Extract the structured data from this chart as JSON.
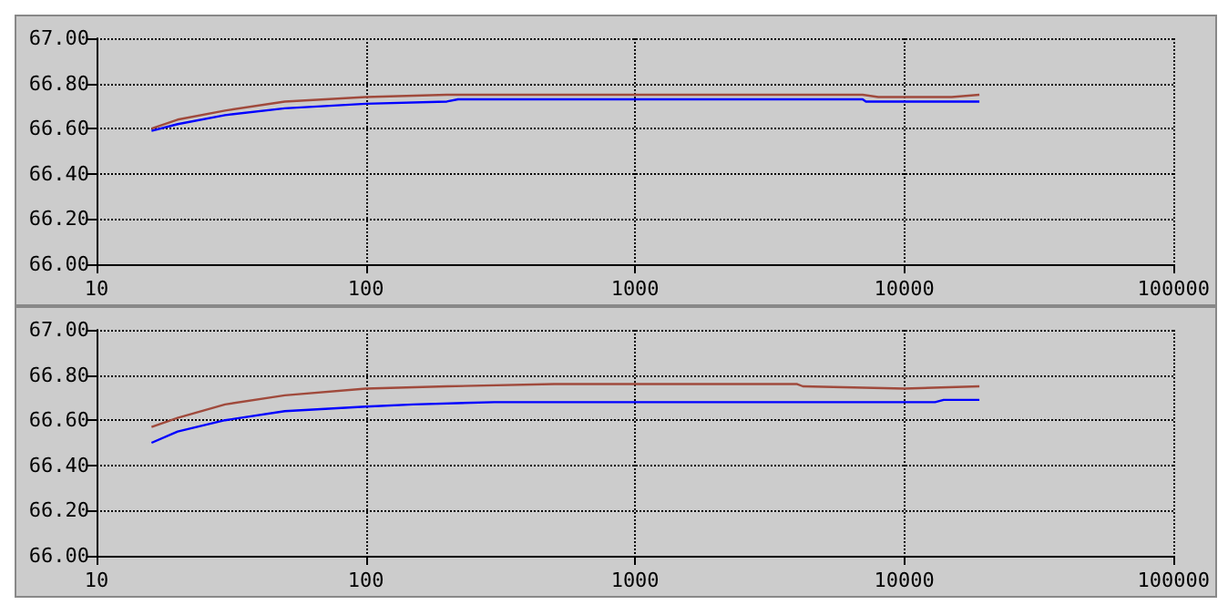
{
  "chart_data": [
    {
      "type": "line",
      "log": "x",
      "grid": true,
      "marker": "none",
      "xlim": [
        10,
        100000
      ],
      "xticks": [
        10,
        100,
        1000,
        10000,
        100000
      ],
      "ylim": [
        66.0,
        67.0
      ],
      "yticks": [
        {
          "value": 66.0,
          "label": "66.00"
        },
        {
          "value": 66.2,
          "label": "66.20"
        },
        {
          "value": 66.4,
          "label": "66.40"
        },
        {
          "value": 66.6,
          "label": "66.60"
        },
        {
          "value": 66.8,
          "label": "66.80"
        },
        {
          "value": 67.0,
          "label": "67.00"
        }
      ],
      "series": [
        {
          "color": "#a04a3c",
          "x": [
            16,
            20,
            30,
            50,
            100,
            200,
            1000,
            7000,
            8000,
            15000,
            19000
          ],
          "values": [
            66.6,
            66.64,
            66.68,
            66.72,
            66.74,
            66.75,
            66.75,
            66.75,
            66.74,
            66.74,
            66.75
          ]
        },
        {
          "color": "#0000ff",
          "x": [
            16,
            20,
            30,
            50,
            100,
            200,
            220,
            1000,
            7000,
            7200,
            19000
          ],
          "values": [
            66.59,
            66.62,
            66.66,
            66.69,
            66.71,
            66.72,
            66.73,
            66.73,
            66.73,
            66.72,
            66.72
          ]
        }
      ]
    },
    {
      "type": "line",
      "log": "x",
      "grid": true,
      "marker": "none",
      "xlim": [
        10,
        100000
      ],
      "xticks": [
        10,
        100,
        1000,
        10000,
        100000
      ],
      "ylim": [
        66.0,
        67.0
      ],
      "yticks": [
        {
          "value": 66.0,
          "label": "66.00"
        },
        {
          "value": 66.2,
          "label": "66.20"
        },
        {
          "value": 66.4,
          "label": "66.40"
        },
        {
          "value": 66.6,
          "label": "66.60"
        },
        {
          "value": 66.8,
          "label": "66.80"
        },
        {
          "value": 67.0,
          "label": "67.00"
        }
      ],
      "series": [
        {
          "color": "#a04a3c",
          "x": [
            16,
            20,
            30,
            50,
            100,
            200,
            500,
            4000,
            4200,
            10000,
            19000
          ],
          "values": [
            66.57,
            66.61,
            66.67,
            66.71,
            66.74,
            66.75,
            66.76,
            66.76,
            66.75,
            66.74,
            66.75
          ]
        },
        {
          "color": "#0000ff",
          "x": [
            16,
            20,
            30,
            50,
            100,
            150,
            300,
            13000,
            14000,
            19000
          ],
          "values": [
            66.5,
            66.55,
            66.6,
            66.64,
            66.66,
            66.67,
            66.68,
            66.68,
            66.69,
            66.69
          ]
        }
      ]
    }
  ]
}
